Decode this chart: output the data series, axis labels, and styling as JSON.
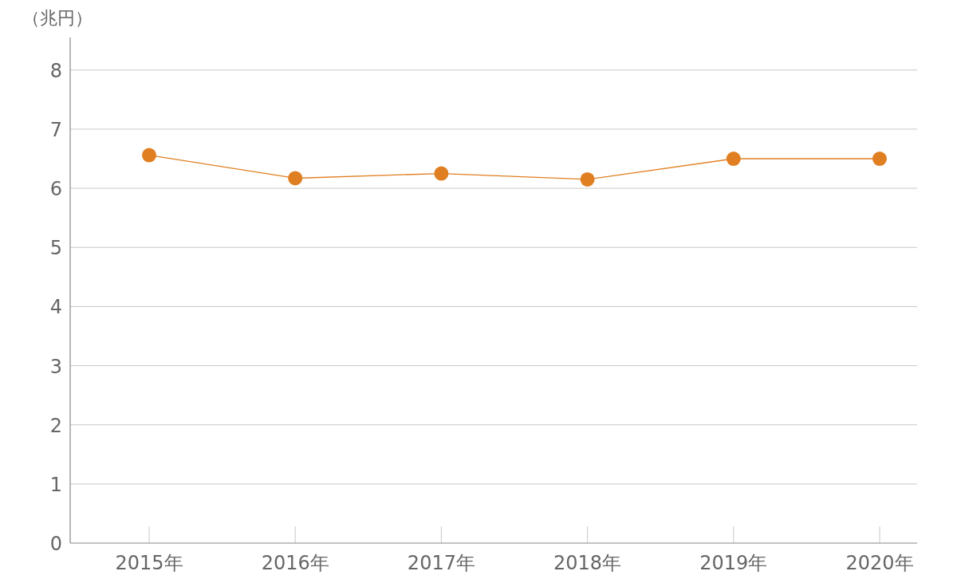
{
  "chart_data": {
    "type": "line",
    "ylabel": "（兆円）",
    "categories": [
      "2015年",
      "2016年",
      "2017年",
      "2018年",
      "2019年",
      "2020年"
    ],
    "values": [
      6.56,
      6.17,
      6.25,
      6.15,
      6.5,
      6.5
    ],
    "color": "#e07f22",
    "ylim": [
      0,
      8.55
    ],
    "yticks": [
      0,
      1,
      2,
      3,
      4,
      5,
      6,
      7,
      8
    ],
    "grid": "y",
    "marker": "circle",
    "line_style": "solid"
  }
}
